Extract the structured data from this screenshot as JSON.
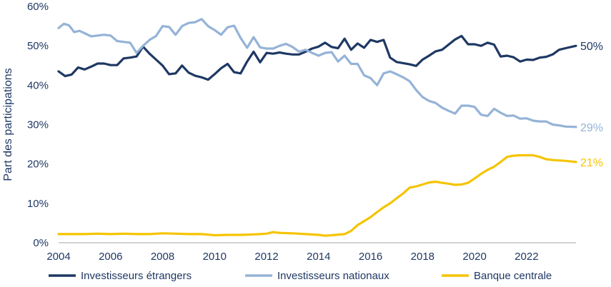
{
  "chart_data": {
    "type": "line",
    "title": "",
    "xlabel": "",
    "ylabel": "Part des participations",
    "xlim": [
      2004,
      2023.9
    ],
    "ylim": [
      0,
      60
    ],
    "x_ticks": [
      2004,
      2006,
      2008,
      2010,
      2012,
      2014,
      2016,
      2018,
      2020,
      2022
    ],
    "x_tick_labels": [
      "2004",
      "2006",
      "2008",
      "2010",
      "2012",
      "2014",
      "2016",
      "2018",
      "2020",
      "2022"
    ],
    "y_ticks": [
      0,
      10,
      20,
      30,
      40,
      50,
      60
    ],
    "y_tick_labels": [
      "0%",
      "10%",
      "20%",
      "30%",
      "40%",
      "50%",
      "60%"
    ],
    "grid": false,
    "legend_position": "bottom",
    "series": [
      {
        "name": "Investisseurs étrangers",
        "color": "#1f3864",
        "end_label": "50%",
        "points": [
          [
            2004,
            43.5
          ],
          [
            2004.25,
            42.3
          ],
          [
            2004.5,
            42.7
          ],
          [
            2004.75,
            44.5
          ],
          [
            2005,
            44
          ],
          [
            2005.25,
            44.7
          ],
          [
            2005.5,
            45.5
          ],
          [
            2005.75,
            45.5
          ],
          [
            2006,
            45.1
          ],
          [
            2006.25,
            45.1
          ],
          [
            2006.5,
            46.8
          ],
          [
            2006.75,
            47
          ],
          [
            2007,
            47.3
          ],
          [
            2007.25,
            49.8
          ],
          [
            2007.5,
            48
          ],
          [
            2007.75,
            46.5
          ],
          [
            2008,
            45
          ],
          [
            2008.25,
            42.8
          ],
          [
            2008.5,
            43
          ],
          [
            2008.75,
            45
          ],
          [
            2009,
            43.2
          ],
          [
            2009.25,
            42.4
          ],
          [
            2009.5,
            42
          ],
          [
            2009.75,
            41.4
          ],
          [
            2010,
            42.8
          ],
          [
            2010.25,
            44.3
          ],
          [
            2010.5,
            45.4
          ],
          [
            2010.75,
            43.3
          ],
          [
            2011,
            43
          ],
          [
            2011.25,
            46
          ],
          [
            2011.5,
            48.5
          ],
          [
            2011.75,
            45.8
          ],
          [
            2012,
            48.2
          ],
          [
            2012.25,
            48
          ],
          [
            2012.5,
            48.3
          ],
          [
            2012.75,
            48
          ],
          [
            2013,
            47.8
          ],
          [
            2013.25,
            47.8
          ],
          [
            2013.5,
            48.5
          ],
          [
            2013.75,
            49.3
          ],
          [
            2014,
            49.8
          ],
          [
            2014.25,
            50.8
          ],
          [
            2014.5,
            49.7
          ],
          [
            2014.75,
            49.4
          ],
          [
            2015,
            51.8
          ],
          [
            2015.25,
            49
          ],
          [
            2015.5,
            50.6
          ],
          [
            2015.75,
            49.5
          ],
          [
            2016,
            51.5
          ],
          [
            2016.25,
            51
          ],
          [
            2016.5,
            51.5
          ],
          [
            2016.75,
            47
          ],
          [
            2017,
            45.9
          ],
          [
            2017.25,
            45.6
          ],
          [
            2017.5,
            45.3
          ],
          [
            2017.75,
            44.9
          ],
          [
            2018,
            46.5
          ],
          [
            2018.25,
            47.5
          ],
          [
            2018.5,
            48.6
          ],
          [
            2018.75,
            49
          ],
          [
            2019,
            50.3
          ],
          [
            2019.25,
            51.6
          ],
          [
            2019.5,
            52.5
          ],
          [
            2019.75,
            50.4
          ],
          [
            2020,
            50.4
          ],
          [
            2020.25,
            50
          ],
          [
            2020.5,
            50.8
          ],
          [
            2020.75,
            50.3
          ],
          [
            2021,
            47.3
          ],
          [
            2021.25,
            47.5
          ],
          [
            2021.5,
            47.1
          ],
          [
            2021.75,
            46
          ],
          [
            2022,
            46.5
          ],
          [
            2022.25,
            46.4
          ],
          [
            2022.5,
            47
          ],
          [
            2022.75,
            47.2
          ],
          [
            2023,
            47.8
          ],
          [
            2023.25,
            49
          ],
          [
            2023.5,
            49.4
          ],
          [
            2023.9,
            50
          ]
        ]
      },
      {
        "name": "Investisseurs nationaux",
        "color": "#95b3d7",
        "end_label": "29%",
        "points": [
          [
            2004,
            54.5
          ],
          [
            2004.2,
            55.6
          ],
          [
            2004.4,
            55.2
          ],
          [
            2004.6,
            53.5
          ],
          [
            2004.8,
            53.8
          ],
          [
            2005,
            53.2
          ],
          [
            2005.25,
            52.4
          ],
          [
            2005.5,
            52.6
          ],
          [
            2005.75,
            52.8
          ],
          [
            2006,
            52.6
          ],
          [
            2006.25,
            51.2
          ],
          [
            2006.5,
            51
          ],
          [
            2006.75,
            50.8
          ],
          [
            2007,
            48.2
          ],
          [
            2007.25,
            50
          ],
          [
            2007.5,
            51.5
          ],
          [
            2007.75,
            52.5
          ],
          [
            2008,
            55
          ],
          [
            2008.25,
            54.8
          ],
          [
            2008.5,
            52.8
          ],
          [
            2008.75,
            55
          ],
          [
            2009,
            55.8
          ],
          [
            2009.25,
            56
          ],
          [
            2009.5,
            56.8
          ],
          [
            2009.75,
            55
          ],
          [
            2010,
            54
          ],
          [
            2010.25,
            52.8
          ],
          [
            2010.5,
            54.7
          ],
          [
            2010.75,
            55.1
          ],
          [
            2011,
            52
          ],
          [
            2011.25,
            49.5
          ],
          [
            2011.5,
            52.2
          ],
          [
            2011.75,
            49.6
          ],
          [
            2012,
            49.3
          ],
          [
            2012.25,
            49.3
          ],
          [
            2012.5,
            50
          ],
          [
            2012.75,
            50.5
          ],
          [
            2013,
            49.7
          ],
          [
            2013.25,
            48.5
          ],
          [
            2013.5,
            49
          ],
          [
            2013.75,
            48.2
          ],
          [
            2014,
            47.5
          ],
          [
            2014.25,
            48.2
          ],
          [
            2014.5,
            48.4
          ],
          [
            2014.75,
            46
          ],
          [
            2015,
            47.5
          ],
          [
            2015.25,
            45.4
          ],
          [
            2015.5,
            45.4
          ],
          [
            2015.75,
            42.5
          ],
          [
            2016,
            41.8
          ],
          [
            2016.25,
            40
          ],
          [
            2016.5,
            43
          ],
          [
            2016.75,
            43.5
          ],
          [
            2017,
            42.8
          ],
          [
            2017.25,
            42
          ],
          [
            2017.5,
            41
          ],
          [
            2017.75,
            38.8
          ],
          [
            2018,
            37
          ],
          [
            2018.25,
            36
          ],
          [
            2018.5,
            35.5
          ],
          [
            2018.75,
            34.3
          ],
          [
            2019,
            33.5
          ],
          [
            2019.25,
            32.8
          ],
          [
            2019.5,
            34.8
          ],
          [
            2019.75,
            34.8
          ],
          [
            2020,
            34.5
          ],
          [
            2020.25,
            32.5
          ],
          [
            2020.5,
            32.2
          ],
          [
            2020.75,
            34
          ],
          [
            2021,
            33
          ],
          [
            2021.25,
            32.2
          ],
          [
            2021.5,
            32.3
          ],
          [
            2021.75,
            31.5
          ],
          [
            2022,
            31.6
          ],
          [
            2022.25,
            31
          ],
          [
            2022.5,
            30.8
          ],
          [
            2022.75,
            30.8
          ],
          [
            2023,
            30
          ],
          [
            2023.25,
            29.8
          ],
          [
            2023.5,
            29.5
          ],
          [
            2023.9,
            29.4
          ]
        ]
      },
      {
        "name": "Banque centrale",
        "color": "#f5c400",
        "end_label": "21%",
        "points": [
          [
            2004,
            2.2
          ],
          [
            2004.5,
            2.2
          ],
          [
            2005,
            2.2
          ],
          [
            2005.5,
            2.3
          ],
          [
            2006,
            2.2
          ],
          [
            2006.5,
            2.3
          ],
          [
            2007,
            2.2
          ],
          [
            2007.5,
            2.2
          ],
          [
            2008,
            2.4
          ],
          [
            2008.5,
            2.3
          ],
          [
            2009,
            2.2
          ],
          [
            2009.5,
            2.2
          ],
          [
            2010,
            1.9
          ],
          [
            2010.5,
            2
          ],
          [
            2011,
            2
          ],
          [
            2011.5,
            2.1
          ],
          [
            2012,
            2.3
          ],
          [
            2012.25,
            2.7
          ],
          [
            2012.5,
            2.5
          ],
          [
            2013,
            2.4
          ],
          [
            2013.5,
            2.2
          ],
          [
            2014,
            2
          ],
          [
            2014.25,
            1.8
          ],
          [
            2014.5,
            1.9
          ],
          [
            2015,
            2.2
          ],
          [
            2015.25,
            3
          ],
          [
            2015.5,
            4.5
          ],
          [
            2015.75,
            5.5
          ],
          [
            2016,
            6.5
          ],
          [
            2016.25,
            7.8
          ],
          [
            2016.5,
            9
          ],
          [
            2016.75,
            10
          ],
          [
            2017,
            11.3
          ],
          [
            2017.25,
            12.5
          ],
          [
            2017.5,
            14
          ],
          [
            2017.75,
            14.3
          ],
          [
            2018,
            14.8
          ],
          [
            2018.25,
            15.3
          ],
          [
            2018.5,
            15.5
          ],
          [
            2018.75,
            15.2
          ],
          [
            2019,
            15
          ],
          [
            2019.25,
            14.7
          ],
          [
            2019.5,
            14.8
          ],
          [
            2019.75,
            15.2
          ],
          [
            2020,
            16.3
          ],
          [
            2020.25,
            17.5
          ],
          [
            2020.5,
            18.5
          ],
          [
            2020.75,
            19.3
          ],
          [
            2021,
            20.5
          ],
          [
            2021.25,
            21.8
          ],
          [
            2021.5,
            22.1
          ],
          [
            2021.75,
            22.2
          ],
          [
            2022,
            22.2
          ],
          [
            2022.25,
            22.2
          ],
          [
            2022.5,
            21.8
          ],
          [
            2022.75,
            21.2
          ],
          [
            2023,
            21
          ],
          [
            2023.5,
            20.8
          ],
          [
            2023.9,
            20.5
          ]
        ]
      }
    ]
  }
}
